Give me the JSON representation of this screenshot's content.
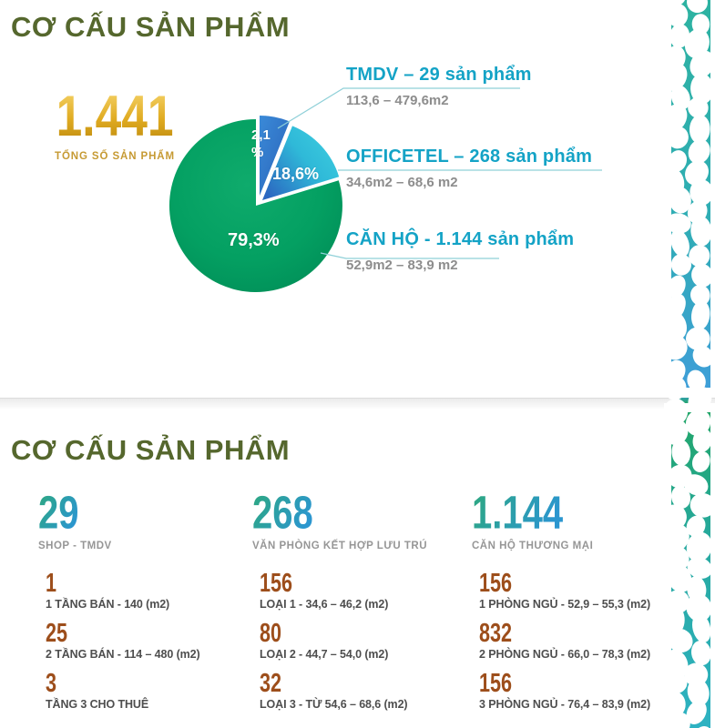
{
  "page1": {
    "title": "CƠ CẤU SẢN PHẨM",
    "total": {
      "value": "1.441",
      "label": "TỔNG SỐ SẢN PHẨM"
    },
    "legend": [
      {
        "title": "TMDV – 29 sản phẩm",
        "subtitle": "113,6 – 479,6m2"
      },
      {
        "title": "OFFICETEL – 268 sản phẩm",
        "subtitle": "34,6m2 – 68,6 m2"
      },
      {
        "title": "CĂN HỘ - 1.144 sản phẩm",
        "subtitle": "52,9m2 – 83,9 m2"
      }
    ]
  },
  "chart_data": {
    "type": "pie",
    "title": "CƠ CẤU SẢN PHẨM",
    "total": "1.441",
    "total_label": "TỔNG SỐ SẢN PHẨM",
    "categories": [
      "TMDV",
      "OFFICETEL",
      "CĂN HỘ"
    ],
    "values": [
      2.1,
      18.6,
      79.3
    ],
    "counts": [
      29,
      268,
      1144
    ],
    "labels": [
      "2,1 %",
      "18,6%",
      "79,3%"
    ],
    "colors": [
      "#3079cd",
      "#2fc0d9",
      "#019b60"
    ],
    "legend_position": "right",
    "exploded_slices": [
      "TMDV",
      "OFFICETEL"
    ]
  },
  "page2": {
    "title": "CƠ CẤU SẢN PHẨM",
    "columns": [
      {
        "value": "29",
        "label": "SHOP - TMDV",
        "details": [
          {
            "value": "1",
            "label": "1 TẦNG BÁN - 140 (m2)"
          },
          {
            "value": "25",
            "label": "2 TẦNG BÁN - 114 – 480 (m2)"
          },
          {
            "value": "3",
            "label": "TẦNG 3 CHO THUÊ"
          }
        ]
      },
      {
        "value": "268",
        "label": "VĂN PHÒNG KẾT HỢP LƯU TRÚ",
        "details": [
          {
            "value": "156",
            "label": "LOẠI 1 - 34,6 – 46,2 (m2)"
          },
          {
            "value": "80",
            "label": "LOẠI 2 - 44,7 – 54,0 (m2)"
          },
          {
            "value": "32",
            "label": "LOẠI 3 - TỪ 54,6 – 68,6 (m2)"
          }
        ]
      },
      {
        "value": "1.144",
        "label": "CĂN HỘ THƯƠNG MẠI",
        "details": [
          {
            "value": "156",
            "label": "1 PHÒNG NGỦ - 52,9 – 55,3 (m2)"
          },
          {
            "value": "832",
            "label": "2 PHÒNG NGỦ - 66,0 – 78,3 (m2)"
          },
          {
            "value": "156",
            "label": "3 PHÒNG NGỦ - 76,4 – 83,9 (m2)"
          }
        ]
      }
    ]
  },
  "colors": {
    "title_green": "#55672d",
    "gold": "#d9a21a",
    "teal_heading": "#14a3c6",
    "big_number_teal": "#2b96cf",
    "detail_brown": "#9d4e1b",
    "pattern_teal": "#2db2a1",
    "pattern_blue": "#3f9ed9",
    "pattern_green": "#21a565"
  }
}
